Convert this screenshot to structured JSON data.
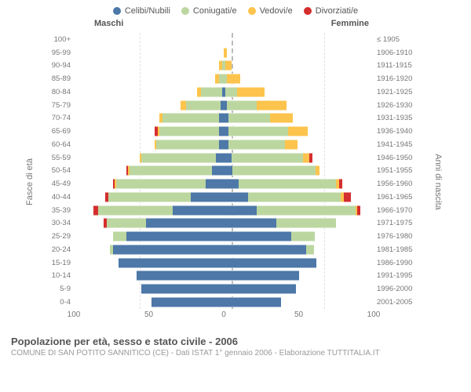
{
  "legend": [
    {
      "label": "Celibi/Nubili",
      "color": "#4d78a8"
    },
    {
      "label": "Coniugati/e",
      "color": "#bcd6a0"
    },
    {
      "label": "Vedovi/e",
      "color": "#fcc44d"
    },
    {
      "label": "Divorziati/e",
      "color": "#d42e2e"
    }
  ],
  "headers": {
    "male": "Maschi",
    "female": "Femmine",
    "right": "≤ 1905"
  },
  "axis_labels": {
    "left": "Fasce di età",
    "right": "Anni di nascita"
  },
  "max_value": 100,
  "xticks": [
    100,
    50,
    0,
    50,
    100
  ],
  "rows": [
    {
      "age": "100+",
      "birth": "≤ 1905",
      "m": [
        0,
        0,
        0,
        0
      ],
      "f": [
        0,
        0,
        0,
        0
      ]
    },
    {
      "age": "95-99",
      "birth": "1906-1910",
      "m": [
        0,
        0,
        0,
        0
      ],
      "f": [
        0,
        0,
        2,
        0
      ]
    },
    {
      "age": "90-94",
      "birth": "1911-1915",
      "m": [
        0,
        1,
        2,
        0
      ],
      "f": [
        0,
        1,
        4,
        0
      ]
    },
    {
      "age": "85-89",
      "birth": "1916-1920",
      "m": [
        0,
        3,
        3,
        0
      ],
      "f": [
        0,
        2,
        9,
        0
      ]
    },
    {
      "age": "80-84",
      "birth": "1921-1925",
      "m": [
        1,
        14,
        3,
        0
      ],
      "f": [
        1,
        8,
        18,
        0
      ]
    },
    {
      "age": "75-79",
      "birth": "1926-1930",
      "m": [
        2,
        23,
        4,
        0
      ],
      "f": [
        2,
        20,
        20,
        0
      ]
    },
    {
      "age": "70-74",
      "birth": "1931-1935",
      "m": [
        3,
        38,
        2,
        0
      ],
      "f": [
        3,
        28,
        15,
        0
      ]
    },
    {
      "age": "65-69",
      "birth": "1936-1940",
      "m": [
        3,
        40,
        1,
        2
      ],
      "f": [
        3,
        40,
        13,
        0
      ]
    },
    {
      "age": "60-64",
      "birth": "1941-1945",
      "m": [
        3,
        42,
        1,
        0
      ],
      "f": [
        3,
        38,
        8,
        0
      ]
    },
    {
      "age": "55-59",
      "birth": "1946-1950",
      "m": [
        5,
        50,
        1,
        0
      ],
      "f": [
        5,
        48,
        4,
        2
      ]
    },
    {
      "age": "50-54",
      "birth": "1951-1955",
      "m": [
        8,
        55,
        1,
        1
      ],
      "f": [
        6,
        55,
        3,
        0
      ]
    },
    {
      "age": "45-49",
      "birth": "1956-1960",
      "m": [
        12,
        60,
        1,
        1
      ],
      "f": [
        10,
        65,
        2,
        2
      ]
    },
    {
      "age": "40-44",
      "birth": "1961-1965",
      "m": [
        22,
        55,
        0,
        2
      ],
      "f": [
        16,
        62,
        2,
        5
      ]
    },
    {
      "age": "35-39",
      "birth": "1966-1970",
      "m": [
        34,
        50,
        0,
        3
      ],
      "f": [
        22,
        66,
        1,
        2
      ]
    },
    {
      "age": "30-34",
      "birth": "1971-1975",
      "m": [
        52,
        26,
        0,
        2
      ],
      "f": [
        35,
        40,
        0,
        0
      ]
    },
    {
      "age": "25-29",
      "birth": "1976-1980",
      "m": [
        65,
        9,
        0,
        0
      ],
      "f": [
        45,
        16,
        0,
        0
      ]
    },
    {
      "age": "20-24",
      "birth": "1981-1985",
      "m": [
        74,
        2,
        0,
        0
      ],
      "f": [
        55,
        5,
        0,
        0
      ]
    },
    {
      "age": "15-19",
      "birth": "1986-1990",
      "m": [
        70,
        0,
        0,
        0
      ],
      "f": [
        62,
        0,
        0,
        0
      ]
    },
    {
      "age": "10-14",
      "birth": "1991-1995",
      "m": [
        58,
        0,
        0,
        0
      ],
      "f": [
        50,
        0,
        0,
        0
      ]
    },
    {
      "age": "5-9",
      "birth": "1996-2000",
      "m": [
        55,
        0,
        0,
        0
      ],
      "f": [
        48,
        0,
        0,
        0
      ]
    },
    {
      "age": "0-4",
      "birth": "2001-2005",
      "m": [
        48,
        0,
        0,
        0
      ],
      "f": [
        38,
        0,
        0,
        0
      ]
    }
  ],
  "footer": {
    "title": "Popolazione per età, sesso e stato civile - 2006",
    "sub": "COMUNE DI SAN POTITO SANNITICO (CE) - Dati ISTAT 1° gennaio 2006 - Elaborazione TUTTITALIA.IT"
  }
}
